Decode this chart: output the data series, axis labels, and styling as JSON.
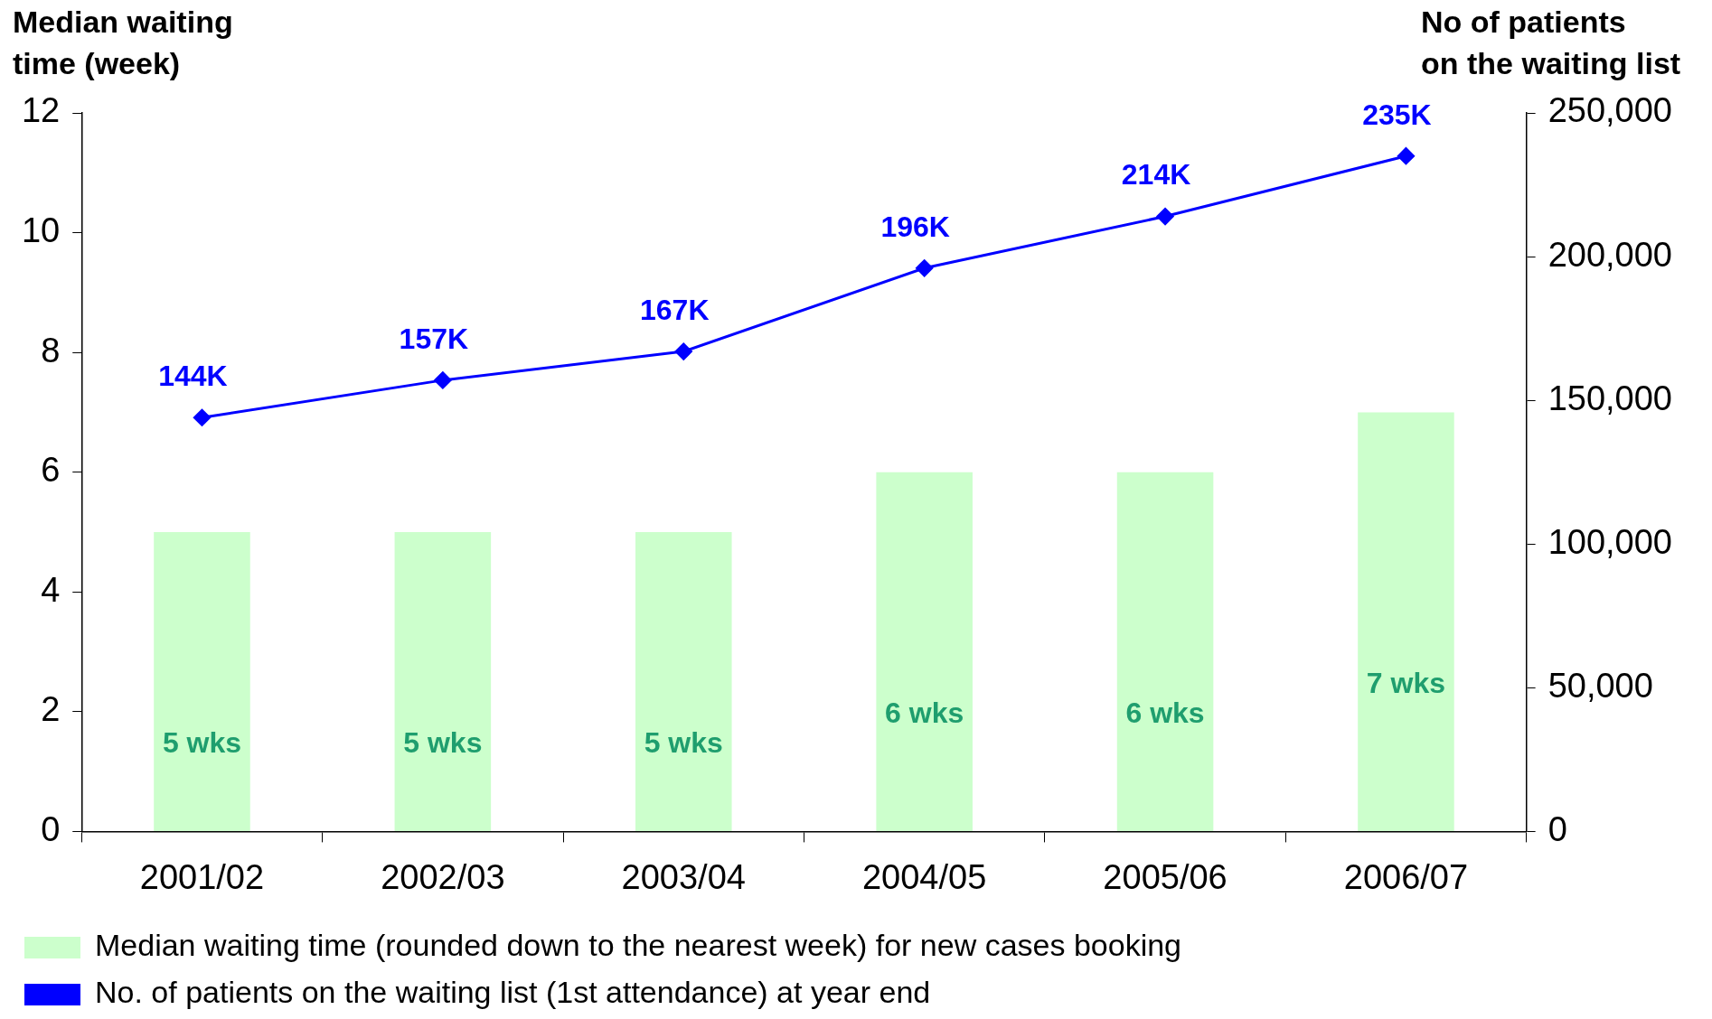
{
  "chart_data": {
    "type": "bar",
    "ylabel": "Median waiting\ntime (week)",
    "y2label": "No of patients\non the waiting list",
    "categories": [
      "2001/02",
      "2002/03",
      "2003/04",
      "2004/05",
      "2005/06",
      "2006/07"
    ],
    "series": [
      {
        "name": "Median waiting time (rounded down to the nearest week) for new cases booking",
        "color": "#ccffcc",
        "values": [
          5,
          5,
          5,
          6,
          6,
          7
        ],
        "value_labels": [
          "5 wks",
          "5 wks",
          "5 wks",
          "6 wks",
          "6 wks",
          "7 wks"
        ]
      },
      {
        "name": "No. of patients on the waiting list (1st attendance) at year end",
        "type": "line",
        "axis": "y2",
        "color": "#0000ff",
        "marker": "diamond",
        "values": [
          144000,
          157000,
          167000,
          196000,
          214000,
          235000
        ],
        "value_labels": [
          "144K",
          "157K",
          "167K",
          "196K",
          "214K",
          "235K"
        ]
      }
    ],
    "ylim": [
      0,
      12
    ],
    "yticks": [
      0,
      2,
      4,
      6,
      8,
      10,
      12
    ],
    "y2lim": [
      0,
      250000
    ],
    "y2ticks": [
      0,
      {
        "value": 50000,
        "label": "50,000"
      },
      {
        "value": 100000,
        "label": "100,000"
      },
      {
        "value": 150000,
        "label": "150,000"
      },
      {
        "value": 200000,
        "label": "200,000"
      },
      {
        "value": 250000,
        "label": "250,000"
      }
    ],
    "grid": false,
    "legend": "bottom"
  }
}
